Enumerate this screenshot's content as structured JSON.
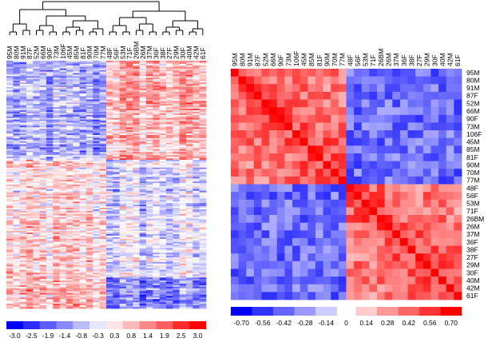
{
  "chart_data": [
    {
      "type": "heatmap",
      "name": "expression-heatmap",
      "title": "",
      "samples": [
        "95M",
        "80M",
        "91M",
        "87F",
        "52M",
        "66M",
        "90F",
        "73M",
        "106F",
        "45M",
        "85M",
        "81F",
        "90M",
        "70M",
        "77M",
        "48F",
        "56F",
        "53M",
        "71F",
        "26BM",
        "26M",
        "37M",
        "36F",
        "38F",
        "27F",
        "29M",
        "30F",
        "40M",
        "42M",
        "61F"
      ],
      "dendrogram": "top",
      "n_rows": 160,
      "cluster_groups": [
        {
          "name": "group-1",
          "samples": [
            "95M",
            "80M",
            "91M",
            "87F",
            "52M",
            "66M",
            "90F",
            "73M",
            "106F",
            "45M",
            "85M",
            "81F",
            "90M",
            "70M",
            "77M"
          ]
        },
        {
          "name": "group-2",
          "samples": [
            "48F",
            "56F",
            "53M",
            "71F",
            "26BM",
            "26M",
            "37M",
            "36F",
            "38F",
            "27F",
            "29M",
            "30F",
            "40M",
            "42M",
            "61F"
          ]
        }
      ],
      "colorbar": {
        "ticks": [
          "-3.0",
          "-2.5",
          "-1.9",
          "-1.4",
          "-0.8",
          "-0.3",
          "0.3",
          "0.8",
          "1.4",
          "1.9",
          "2.5",
          "3.0"
        ],
        "min": -3.0,
        "max": 3.0
      }
    },
    {
      "type": "heatmap",
      "name": "correlation-matrix",
      "title": "",
      "samples": [
        "95M",
        "80M",
        "91M",
        "87F",
        "52M",
        "66M",
        "90F",
        "73M",
        "106F",
        "45M",
        "85M",
        "81F",
        "90M",
        "70M",
        "77M",
        "48F",
        "56F",
        "53M",
        "71F",
        "26BM",
        "26M",
        "37M",
        "36F",
        "38F",
        "27F",
        "29M",
        "30F",
        "40M",
        "42M",
        "61F"
      ],
      "cluster_sizes": [
        15,
        15
      ],
      "within_cluster_correlation": 0.35,
      "between_cluster_correlation": -0.4,
      "diagonal_value": 0.7,
      "colorbar": {
        "negative_ticks": [
          "-0.70",
          "-0.56",
          "-0.42",
          "-0.28",
          "-0.14"
        ],
        "zero_tick": "0",
        "positive_ticks": [
          "0.14",
          "0.28",
          "0.42",
          "0.56",
          "0.70"
        ],
        "min": -0.7,
        "max": 0.7
      }
    }
  ],
  "colors": {
    "negative": "#0000ff",
    "neutral": "#ffffff",
    "positive": "#ff0000"
  }
}
